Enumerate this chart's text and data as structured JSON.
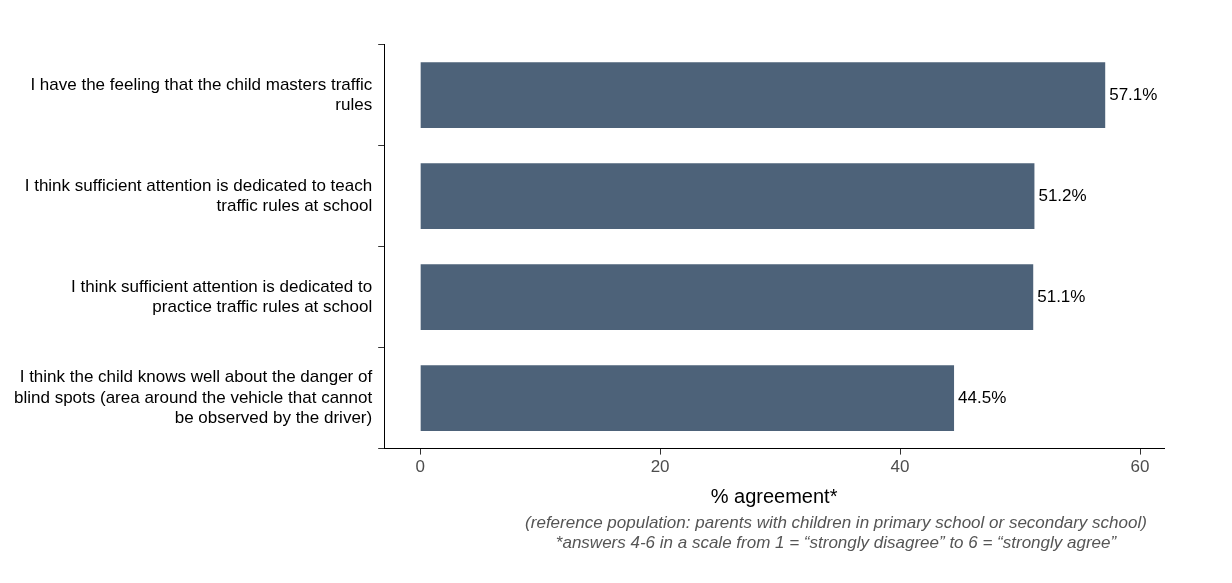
{
  "chart_data": {
    "type": "bar",
    "orientation": "horizontal",
    "xlabel": "% agreement*",
    "categories": [
      "I have the feeling that the child masters traffic rules",
      "I think sufficient attention is dedicated to teach traffic rules at school",
      "I think sufficient attention is dedicated to practice traffic rules at school",
      "I think the child knows well about the danger of blind spots (area around the vehicle that cannot be observed by the driver)"
    ],
    "values": [
      57.1,
      51.2,
      51.1,
      44.5
    ],
    "value_labels": [
      "57.1%",
      "51.2%",
      "51.1%",
      "44.5%"
    ],
    "color": "#4d6279",
    "xlim": [
      -3,
      62
    ],
    "xticks": [
      0,
      20,
      40,
      60
    ],
    "grid": false,
    "legend": false,
    "annotations": [
      "(reference population: parents with children in primary school or secondary school)",
      "*answers 4-6 in a scale from 1 = “strongly disagree” to 6 = “strongly agree”"
    ]
  }
}
